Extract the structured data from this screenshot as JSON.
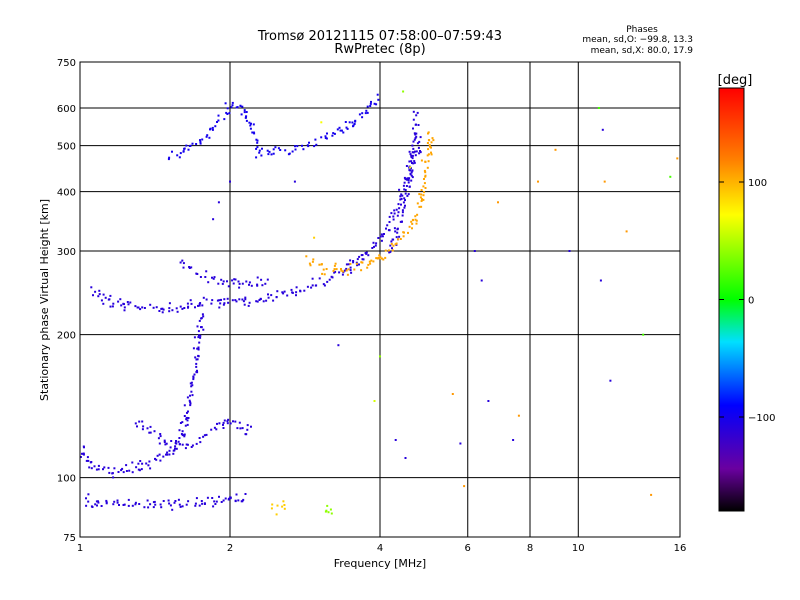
{
  "chart_data": {
    "type": "scatter",
    "title": "Tromsø 20121115 07:58:00–07:59:43",
    "subtitle": "RwPretec (8p)",
    "xlabel": "Frequency [MHz]",
    "ylabel": "Stationary phase Virtual Height [km]",
    "x_scale": "log",
    "y_scale": "log",
    "xlim": [
      1,
      16
    ],
    "ylim": [
      75,
      750
    ],
    "grid": true,
    "x_ticks": [
      1,
      2,
      4,
      6,
      8,
      10,
      16
    ],
    "x_tick_labels": [
      "1",
      "2",
      "4",
      "6",
      "8",
      "10",
      "16"
    ],
    "y_ticks": [
      75,
      100,
      200,
      300,
      400,
      500,
      600,
      750
    ],
    "y_tick_labels": [
      "75",
      "100",
      "200",
      "300",
      "400",
      "500",
      "600",
      "750"
    ],
    "stats": {
      "heading": "Phases",
      "line_o": "mean, sd,O: −99.8, 13.3",
      "line_x": "mean, sd,X:  80.0, 17.9"
    },
    "colorbar": {
      "label": "[deg]",
      "range": [
        -180,
        180
      ],
      "ticks": [
        100,
        0,
        -100
      ],
      "tick_labels": [
        "100",
        "0",
        "−100"
      ]
    },
    "traces": [
      {
        "color_value": -110,
        "points": [
          [
            1.05,
            250
          ],
          [
            1.08,
            243
          ],
          [
            1.12,
            238
          ],
          [
            1.2,
            232
          ],
          [
            1.3,
            229
          ],
          [
            1.4,
            227
          ],
          [
            1.5,
            226
          ],
          [
            1.6,
            228
          ],
          [
            1.7,
            232
          ],
          [
            1.8,
            234
          ],
          [
            2.0,
            235
          ],
          [
            2.2,
            237
          ],
          [
            2.4,
            240
          ],
          [
            2.6,
            245
          ],
          [
            2.8,
            250
          ],
          [
            3.0,
            257
          ],
          [
            3.2,
            264
          ],
          [
            3.4,
            274
          ],
          [
            3.6,
            284
          ],
          [
            3.8,
            298
          ],
          [
            4.0,
            318
          ],
          [
            4.2,
            345
          ],
          [
            4.4,
            385
          ],
          [
            4.6,
            440
          ],
          [
            4.8,
            520
          ]
        ]
      },
      {
        "color_value": -110,
        "points": [
          [
            1.6,
            285
          ],
          [
            1.7,
            272
          ],
          [
            1.8,
            266
          ],
          [
            1.9,
            262
          ],
          [
            2.0,
            258
          ],
          [
            2.2,
            257
          ],
          [
            2.4,
            258
          ]
        ]
      },
      {
        "color_value": -100,
        "points": [
          [
            1.5,
            470
          ],
          [
            1.6,
            490
          ],
          [
            1.7,
            500
          ],
          [
            1.8,
            520
          ],
          [
            1.9,
            560
          ],
          [
            2.0,
            600
          ],
          [
            2.1,
            610
          ],
          [
            2.2,
            560
          ],
          [
            2.3,
            480
          ],
          [
            2.5,
            485
          ],
          [
            2.8,
            495
          ],
          [
            3.0,
            510
          ],
          [
            3.2,
            525
          ],
          [
            3.4,
            545
          ],
          [
            3.6,
            570
          ],
          [
            3.8,
            600
          ],
          [
            4.0,
            640
          ]
        ]
      },
      {
        "color_value": -110,
        "points": [
          [
            4.2,
            300
          ],
          [
            4.3,
            320
          ],
          [
            4.4,
            350
          ],
          [
            4.5,
            390
          ],
          [
            4.6,
            430
          ],
          [
            4.65,
            480
          ],
          [
            4.7,
            550
          ],
          [
            4.72,
            600
          ]
        ]
      },
      {
        "color_value": 105,
        "points": [
          [
            2.9,
            285
          ],
          [
            3.0,
            278
          ],
          [
            3.2,
            274
          ],
          [
            3.4,
            275
          ],
          [
            3.6,
            279
          ],
          [
            3.8,
            284
          ],
          [
            4.0,
            290
          ],
          [
            4.2,
            300
          ],
          [
            4.4,
            320
          ],
          [
            4.6,
            340
          ],
          [
            4.8,
            370
          ],
          [
            4.9,
            420
          ],
          [
            5.0,
            480
          ],
          [
            5.05,
            540
          ]
        ]
      },
      {
        "color_value": -110,
        "points": [
          [
            1.0,
            115
          ],
          [
            1.03,
            108
          ],
          [
            1.08,
            104
          ],
          [
            1.15,
            103
          ],
          [
            1.25,
            104
          ],
          [
            1.35,
            106
          ],
          [
            1.5,
            112
          ],
          [
            1.6,
            122
          ],
          [
            1.65,
            140
          ],
          [
            1.7,
            165
          ],
          [
            1.72,
            190
          ],
          [
            1.74,
            210
          ],
          [
            1.76,
            230
          ]
        ]
      },
      {
        "color_value": -110,
        "points": [
          [
            1.3,
            130
          ],
          [
            1.4,
            125
          ],
          [
            1.5,
            118
          ],
          [
            1.6,
            116
          ],
          [
            1.7,
            118
          ],
          [
            1.8,
            124
          ],
          [
            1.9,
            128
          ],
          [
            2.0,
            131
          ],
          [
            2.1,
            128
          ],
          [
            2.2,
            124
          ]
        ]
      },
      {
        "color_value": -110,
        "points": [
          [
            1.02,
            90
          ],
          [
            1.05,
            88
          ],
          [
            1.2,
            88
          ],
          [
            1.4,
            88
          ],
          [
            1.6,
            88
          ],
          [
            1.8,
            89
          ],
          [
            2.0,
            90
          ],
          [
            2.2,
            91
          ]
        ]
      },
      {
        "color_value": 90,
        "points": [
          [
            2.45,
            87
          ],
          [
            2.5,
            85
          ],
          [
            2.6,
            88
          ]
        ]
      },
      {
        "color_value": 40,
        "points": [
          [
            3.1,
            86
          ],
          [
            3.15,
            85
          ],
          [
            3.2,
            87
          ]
        ]
      }
    ],
    "scattered_points": [
      {
        "x": 1.9,
        "y": 380,
        "v": -110
      },
      {
        "x": 2.0,
        "y": 420,
        "v": -110
      },
      {
        "x": 1.85,
        "y": 350,
        "v": -110
      },
      {
        "x": 2.7,
        "y": 420,
        "v": -110
      },
      {
        "x": 2.95,
        "y": 320,
        "v": 90
      },
      {
        "x": 3.3,
        "y": 190,
        "v": -110
      },
      {
        "x": 3.5,
        "y": 270,
        "v": -110
      },
      {
        "x": 3.9,
        "y": 145,
        "v": 60
      },
      {
        "x": 4.0,
        "y": 180,
        "v": 40
      },
      {
        "x": 4.3,
        "y": 120,
        "v": -110
      },
      {
        "x": 4.5,
        "y": 110,
        "v": -110
      },
      {
        "x": 4.6,
        "y": 450,
        "v": 70
      },
      {
        "x": 5.6,
        "y": 150,
        "v": 110
      },
      {
        "x": 5.8,
        "y": 118,
        "v": -110
      },
      {
        "x": 5.9,
        "y": 96,
        "v": 110
      },
      {
        "x": 6.2,
        "y": 300,
        "v": -110
      },
      {
        "x": 6.4,
        "y": 260,
        "v": -110
      },
      {
        "x": 6.6,
        "y": 145,
        "v": -110
      },
      {
        "x": 6.9,
        "y": 380,
        "v": 110
      },
      {
        "x": 7.4,
        "y": 120,
        "v": -110
      },
      {
        "x": 7.6,
        "y": 135,
        "v": 110
      },
      {
        "x": 8.3,
        "y": 420,
        "v": 110
      },
      {
        "x": 9.0,
        "y": 490,
        "v": 110
      },
      {
        "x": 9.6,
        "y": 300,
        "v": -110
      },
      {
        "x": 11.0,
        "y": 600,
        "v": 20
      },
      {
        "x": 11.2,
        "y": 540,
        "v": -110
      },
      {
        "x": 11.3,
        "y": 420,
        "v": 110
      },
      {
        "x": 11.1,
        "y": 260,
        "v": -110
      },
      {
        "x": 11.6,
        "y": 160,
        "v": -110
      },
      {
        "x": 12.5,
        "y": 330,
        "v": 110
      },
      {
        "x": 13.5,
        "y": 200,
        "v": 20
      },
      {
        "x": 14.0,
        "y": 92,
        "v": 110
      },
      {
        "x": 15.3,
        "y": 430,
        "v": 20
      },
      {
        "x": 15.8,
        "y": 470,
        "v": 110
      },
      {
        "x": 3.05,
        "y": 560,
        "v": 70
      },
      {
        "x": 4.45,
        "y": 650,
        "v": 40
      }
    ]
  }
}
